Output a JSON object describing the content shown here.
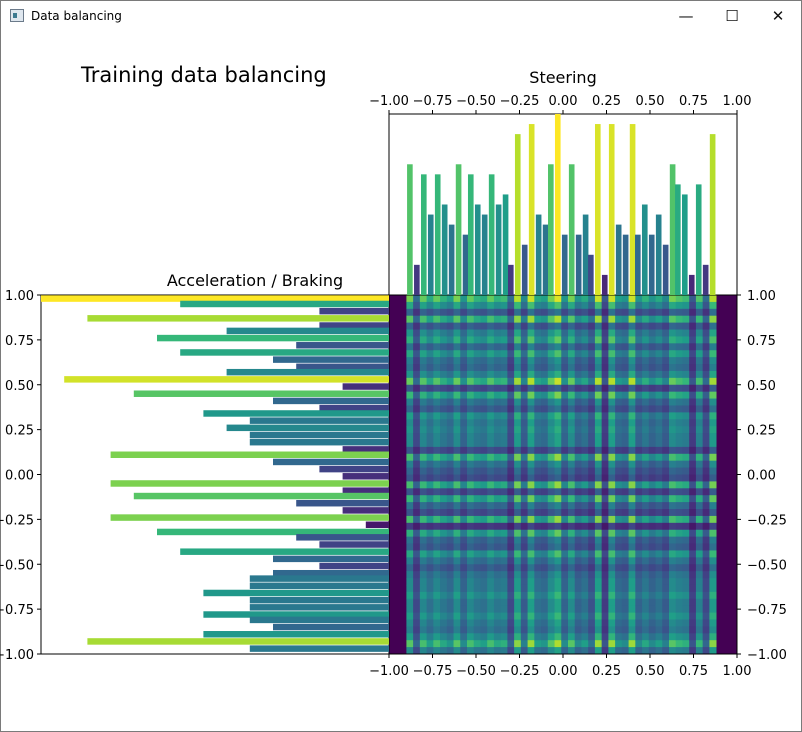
{
  "window": {
    "title": "Data balancing",
    "minimize_glyph": "—",
    "maximize_glyph": "☐",
    "close_glyph": "✕",
    "icon": "app-window-icon"
  },
  "figure": {
    "suptitle": "Training data balancing"
  },
  "chart_data": [
    {
      "type": "bar",
      "id": "steering",
      "title": "Steering",
      "xlim": [
        -1.0,
        1.0
      ],
      "x_ticks": [
        -1.0,
        -0.75,
        -0.5,
        -0.25,
        0.0,
        0.25,
        0.5,
        0.75,
        1.0
      ],
      "x_tick_labels": [
        "−1.00",
        "−0.75",
        "−0.50",
        "−0.25",
        "0.00",
        "0.25",
        "0.50",
        "0.75",
        "1.00"
      ],
      "y_visible": false,
      "ylim": [
        0,
        18
      ],
      "bin_width": 0.038,
      "x": [
        -0.88,
        -0.84,
        -0.8,
        -0.76,
        -0.72,
        -0.68,
        -0.64,
        -0.6,
        -0.56,
        -0.53,
        -0.49,
        -0.45,
        -0.41,
        -0.37,
        -0.33,
        -0.3,
        -0.26,
        -0.22,
        -0.18,
        -0.14,
        -0.1,
        -0.07,
        -0.03,
        0.01,
        0.05,
        0.09,
        0.13,
        0.16,
        0.2,
        0.24,
        0.28,
        0.32,
        0.36,
        0.4,
        0.43,
        0.47,
        0.51,
        0.55,
        0.59,
        0.63,
        0.66,
        0.7,
        0.74,
        0.78,
        0.82,
        0.86
      ],
      "values": [
        13,
        3,
        12,
        8,
        12,
        9,
        7,
        13,
        6,
        12,
        9,
        8,
        12,
        9,
        10,
        3,
        16,
        5,
        17,
        8,
        7,
        13,
        18,
        6,
        13,
        6,
        8,
        4,
        17,
        2,
        17,
        7,
        6,
        17,
        6,
        9,
        6,
        8,
        5,
        13,
        11,
        10,
        2,
        11,
        3,
        16
      ]
    },
    {
      "type": "bar",
      "id": "acceleration",
      "orientation": "horizontal",
      "title": "Acceleration / Braking",
      "ylim": [
        -1.0,
        1.0
      ],
      "y_ticks": [
        1.0,
        0.75,
        0.5,
        0.25,
        0.0,
        -0.25,
        -0.5,
        -0.75,
        -1.0
      ],
      "y_tick_labels": [
        "1.00",
        "0.75",
        "0.50",
        "0.25",
        "0.00",
        "−0.25",
        "−0.50",
        "−0.75",
        "−1.00"
      ],
      "x_visible": false,
      "x_inverted": true,
      "xlim": [
        0,
        15
      ],
      "bin_width": 0.038,
      "y": [
        0.98,
        0.95,
        0.91,
        0.87,
        0.83,
        0.8,
        0.76,
        0.72,
        0.68,
        0.64,
        0.6,
        0.57,
        0.53,
        0.49,
        0.45,
        0.41,
        0.37,
        0.34,
        0.3,
        0.26,
        0.22,
        0.18,
        0.14,
        0.11,
        0.07,
        0.03,
        -0.01,
        -0.05,
        -0.09,
        -0.12,
        -0.16,
        -0.2,
        -0.24,
        -0.28,
        -0.32,
        -0.35,
        -0.39,
        -0.43,
        -0.47,
        -0.51,
        -0.55,
        -0.58,
        -0.62,
        -0.66,
        -0.7,
        -0.74,
        -0.78,
        -0.81,
        -0.85,
        -0.89,
        -0.93,
        -0.97
      ],
      "values": [
        15,
        9,
        3,
        13,
        3,
        7,
        10,
        4,
        9,
        5,
        4,
        7,
        14,
        2,
        11,
        5,
        3,
        8,
        6,
        7,
        6,
        6,
        2,
        12,
        5,
        3,
        2,
        12,
        2,
        11,
        4,
        2,
        12,
        1,
        10,
        4,
        3,
        9,
        5,
        3,
        5,
        6,
        6,
        8,
        6,
        6,
        8,
        6,
        5,
        8,
        13,
        6
      ]
    },
    {
      "type": "heatmap",
      "id": "joint",
      "xlim": [
        -1.0,
        1.0
      ],
      "ylim": [
        -1.0,
        1.0
      ],
      "x_ticks": [
        -1.0,
        -0.75,
        -0.5,
        -0.25,
        0.0,
        0.25,
        0.5,
        0.75,
        1.0
      ],
      "x_tick_labels": [
        "−1.00",
        "−0.75",
        "−0.50",
        "−0.25",
        "0.00",
        "0.25",
        "0.50",
        "0.75",
        "1.00"
      ],
      "y_ticks": [
        1.0,
        0.75,
        0.5,
        0.25,
        0.0,
        -0.25,
        -0.5,
        -0.75,
        -1.0
      ],
      "y_tick_labels": [
        "1.00",
        "0.75",
        "0.50",
        "0.25",
        "0.00",
        "−0.25",
        "−0.50",
        "−0.75",
        "−1.00"
      ],
      "data_extent_x": [
        -0.9,
        0.88
      ],
      "colormap": "viridis",
      "note_values": "cell value = outer product of steering and acceleration marginals"
    }
  ]
}
